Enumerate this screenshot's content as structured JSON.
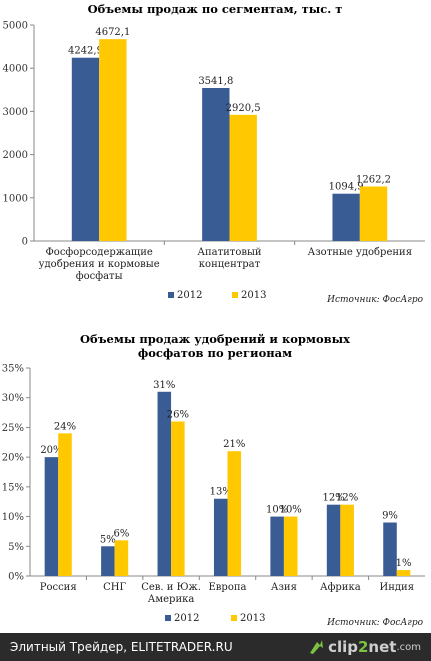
{
  "chart_data": [
    {
      "type": "bar",
      "title": "Объемы продаж по сегментам, тыс. т",
      "categories": [
        [
          "Фосфорсодержащие",
          "удобрения и кормовые",
          "фосфаты"
        ],
        [
          "Апатитовый",
          "концентрат"
        ],
        [
          "Азотные удобрения"
        ]
      ],
      "series": [
        {
          "name": "2012",
          "values": [
            4242.9,
            3541.8,
            1094.9
          ],
          "labels": [
            "4242,9",
            "3541,8",
            "1094,9"
          ],
          "color": "#3a5c95"
        },
        {
          "name": "2013",
          "values": [
            4672.1,
            2920.5,
            1262.2
          ],
          "labels": [
            "4672,1",
            "2920,5",
            "1262,2"
          ],
          "color": "#ffc800"
        }
      ],
      "ylim": [
        0,
        5000
      ],
      "yticks": [
        0,
        1000,
        2000,
        3000,
        4000,
        5000
      ],
      "ytick_labels": [
        "0",
        "1000",
        "2000",
        "3000",
        "4000",
        "5000"
      ],
      "grid": false,
      "legend_position": "bottom",
      "source": "Источник: ФосАгро"
    },
    {
      "type": "bar",
      "title": [
        "Объемы продаж удобрений и кормовых",
        "фосфатов по регионам"
      ],
      "categories": [
        [
          "Россия"
        ],
        [
          "СНГ"
        ],
        [
          "Сев. и Юж.",
          "Америка"
        ],
        [
          "Европа"
        ],
        [
          "Азия"
        ],
        [
          "Африка"
        ],
        [
          "Индия"
        ]
      ],
      "series": [
        {
          "name": "2012",
          "values": [
            20,
            5,
            31,
            13,
            10,
            12,
            9
          ],
          "labels": [
            "20%",
            "5%",
            "31%",
            "13%",
            "10%",
            "12%",
            "9%"
          ],
          "color": "#3a5c95"
        },
        {
          "name": "2013",
          "values": [
            24,
            6,
            26,
            21,
            10,
            12,
            1
          ],
          "labels": [
            "24%",
            "6%",
            "26%",
            "21%",
            "10%",
            "12%",
            "1%"
          ],
          "color": "#ffc800"
        }
      ],
      "ylim": [
        0,
        35
      ],
      "yticks": [
        0,
        5,
        10,
        15,
        20,
        25,
        30,
        35
      ],
      "ytick_labels": [
        "0%",
        "5%",
        "10%",
        "15%",
        "20%",
        "25%",
        "30%",
        "35%"
      ],
      "grid": false,
      "legend_position": "bottom",
      "source": "Источник: ФосАгро"
    }
  ],
  "footer": {
    "site_text": "Элитный Трейдер, ELITETRADER.RU",
    "brand_part1": "clip",
    "brand_part2": "2",
    "brand_part3": "net",
    "brand_suffix": ".com",
    "brand_icon": "arrow-icon"
  }
}
